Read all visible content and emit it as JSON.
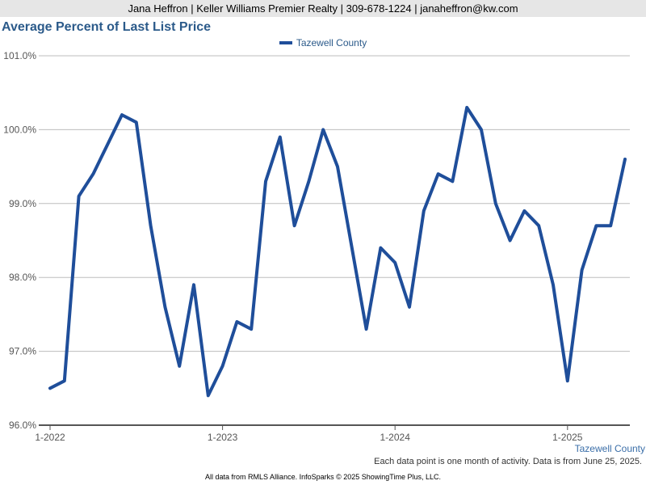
{
  "header": {
    "contact": "Jana Heffron | Keller Williams Premier Realty | 309-678-1224 | janaheffron@kw.com"
  },
  "chart_data": {
    "type": "line",
    "title": "Average Percent of Last List Price",
    "xlabel": "",
    "ylabel": "",
    "ylim": [
      96.0,
      101.0
    ],
    "yticks": [
      96.0,
      97.0,
      98.0,
      99.0,
      100.0,
      101.0
    ],
    "ytick_labels": [
      "96.0%",
      "97.0%",
      "98.0%",
      "99.0%",
      "100.0%",
      "101.0%"
    ],
    "x_tick_labels": [
      "1-2022",
      "1-2023",
      "1-2024",
      "1-2025"
    ],
    "x_tick_months": [
      0,
      12,
      24,
      36
    ],
    "grid": true,
    "legend_position": "top-center",
    "series_color": "#1f4e9a",
    "series": [
      {
        "name": "Tazewell County",
        "values": [
          96.5,
          96.6,
          99.1,
          99.4,
          99.8,
          100.2,
          100.1,
          98.7,
          97.6,
          96.8,
          97.9,
          96.4,
          96.8,
          97.4,
          97.3,
          99.3,
          99.9,
          98.7,
          99.3,
          100.0,
          99.5,
          98.4,
          97.3,
          98.4,
          98.2,
          97.6,
          98.9,
          99.4,
          99.3,
          100.3,
          100.0,
          99.0,
          98.5,
          98.9,
          98.7,
          97.9,
          96.6,
          98.1,
          98.7,
          98.7,
          99.6
        ]
      }
    ],
    "axis_series_label": "Tazewell County"
  },
  "notes": {
    "activity": "Each data point is one month of activity. Data is from June 25, 2025.",
    "footer": "All data from RMLS Alliance. InfoSparks © 2025 ShowingTime Plus, LLC."
  }
}
